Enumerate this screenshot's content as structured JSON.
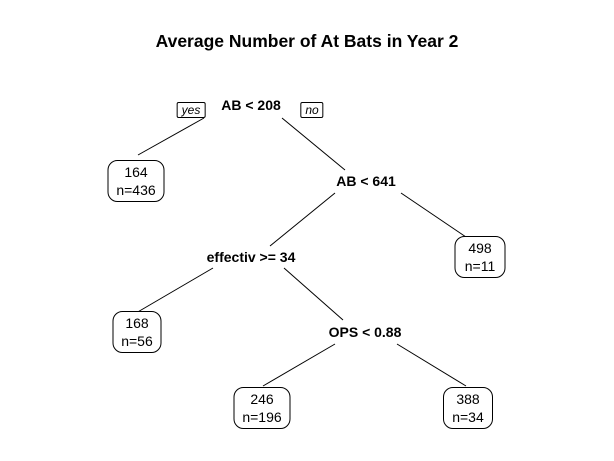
{
  "title": "Average Number of At Bats in Year 2",
  "branch_tags": {
    "yes": "yes",
    "no": "no"
  },
  "splits": {
    "root": "AB < 208",
    "ab641": "AB < 641",
    "effectiv": "effectiv >= 34",
    "ops": "OPS < 0.88"
  },
  "leaves": {
    "leaf_164": {
      "value": "164",
      "n": "n=436"
    },
    "leaf_498": {
      "value": "498",
      "n": "n=11"
    },
    "leaf_168": {
      "value": "168",
      "n": "n=56"
    },
    "leaf_246": {
      "value": "246",
      "n": "n=196"
    },
    "leaf_388": {
      "value": "388",
      "n": "n=34"
    }
  }
}
